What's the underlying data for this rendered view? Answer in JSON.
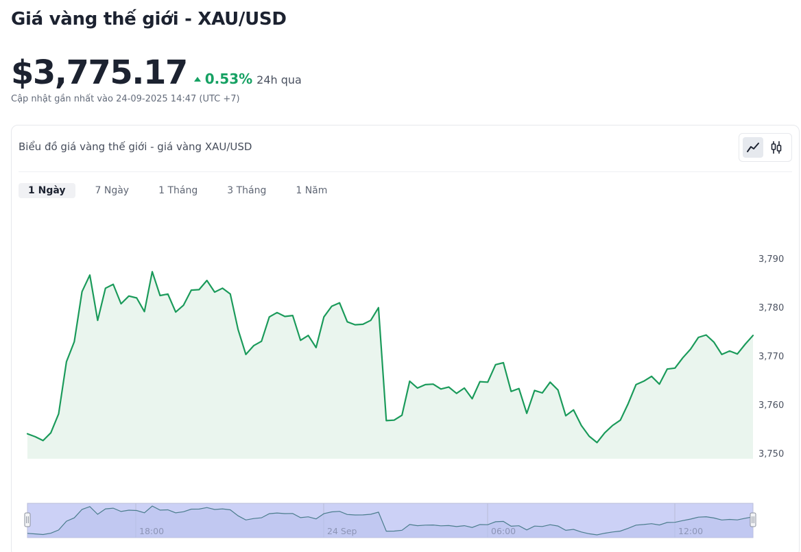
{
  "page": {
    "title": "Giá vàng thế giới - XAU/USD",
    "price": "$3,775.17",
    "change_pct": "0.53%",
    "change_period": "24h qua",
    "updated": "Cập nhật gần nhất vào 24-09-2025 14:47 (UTC +7)"
  },
  "card": {
    "header": "Biểu đồ giá vàng thế giới - giá vàng XAU/USD",
    "chart_types": [
      {
        "name": "line-chart-icon",
        "active": true
      },
      {
        "name": "candlestick-icon",
        "active": false
      }
    ],
    "ranges": [
      "1 Ngày",
      "7 Ngày",
      "1 Tháng",
      "3 Tháng",
      "1 Năm"
    ],
    "active_range": "1 Ngày"
  },
  "colors": {
    "line": "#1a9a5a",
    "area": "#eaf5ee",
    "up": "#16a163",
    "navigator_fill": "#ccd1f6",
    "navigator_line": "#6b7280"
  },
  "chart_data": {
    "type": "area",
    "title": "",
    "xlabel": "",
    "ylabel": "",
    "ylim": [
      3749.5,
      3791.5
    ],
    "y_ticks": [
      "3,750",
      "3,760",
      "3,770",
      "3,780",
      "3,790"
    ],
    "y_tick_values": [
      3750,
      3760,
      3770,
      3780,
      3790
    ],
    "x_start": "23 Sep 14:50",
    "x_end": "24 Sep 14:47",
    "navigator_labels": [
      "18:00",
      "24 Sep",
      "06:00",
      "12:00"
    ],
    "series": [
      {
        "values": [
          3754.0,
          3753.4,
          3752.6,
          3754.2,
          3758.1,
          3768.8,
          3772.9,
          3783.2,
          3786.6,
          3777.3,
          3783.9,
          3784.7,
          3780.7,
          3782.3,
          3781.9,
          3779.1,
          3787.3,
          3782.4,
          3782.7,
          3779.0,
          3780.4,
          3783.5,
          3783.6,
          3785.5,
          3783.1,
          3783.9,
          3782.7,
          3775.4,
          3770.3,
          3772.1,
          3773.0,
          3778.0,
          3778.9,
          3778.1,
          3778.3,
          3773.2,
          3774.2,
          3771.7,
          3778.0,
          3780.2,
          3780.9,
          3777.0,
          3776.4,
          3776.5,
          3777.3,
          3779.9,
          3756.7,
          3756.8,
          3757.8,
          3764.8,
          3763.4,
          3764.1,
          3764.2,
          3763.2,
          3763.6,
          3762.3,
          3763.4,
          3761.2,
          3764.7,
          3764.6,
          3768.2,
          3768.6,
          3762.7,
          3763.3,
          3758.2,
          3762.9,
          3762.4,
          3764.6,
          3763.0,
          3757.7,
          3758.9,
          3755.7,
          3753.5,
          3752.2,
          3754.2,
          3755.7,
          3756.8,
          3760.2,
          3764.1,
          3764.8,
          3765.8,
          3764.2,
          3767.3,
          3767.5,
          3769.6,
          3771.4,
          3773.8,
          3774.3,
          3772.8,
          3770.3,
          3771.0,
          3770.4,
          3772.4,
          3774.2
        ]
      }
    ]
  }
}
